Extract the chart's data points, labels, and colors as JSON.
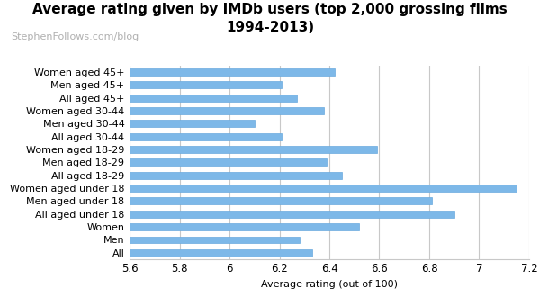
{
  "title_line1": "Average rating given by IMDb users (top 2,000 grossing films",
  "title_line2": "1994-2013)",
  "subtitle": "StephenFollows.com/blog",
  "xlabel": "Average rating (out of 100)",
  "categories": [
    "Women aged 45+",
    "Men aged 45+",
    "All aged 45+",
    "Women aged 30-44",
    "Men aged 30-44",
    "All aged 30-44",
    "Women aged 18-29",
    "Men aged 18-29",
    "All aged 18-29",
    "Women aged under 18",
    "Men aged under 18",
    "All aged under 18",
    "Women",
    "Men",
    "All"
  ],
  "values": [
    6.42,
    6.21,
    6.27,
    6.38,
    6.1,
    6.21,
    6.59,
    6.39,
    6.45,
    7.15,
    6.81,
    6.9,
    6.52,
    6.28,
    6.33
  ],
  "bar_color": "#7db8e8",
  "bar_edge_color": "#6aaade",
  "xlim": [
    5.6,
    7.2
  ],
  "xticks": [
    5.6,
    5.8,
    6.0,
    6.2,
    6.4,
    6.6,
    6.8,
    7.0,
    7.2
  ],
  "grid_color": "#c8c8c8",
  "bg_color": "#ffffff",
  "title_fontsize": 11,
  "subtitle_fontsize": 8,
  "label_fontsize": 8,
  "tick_fontsize": 8.5
}
